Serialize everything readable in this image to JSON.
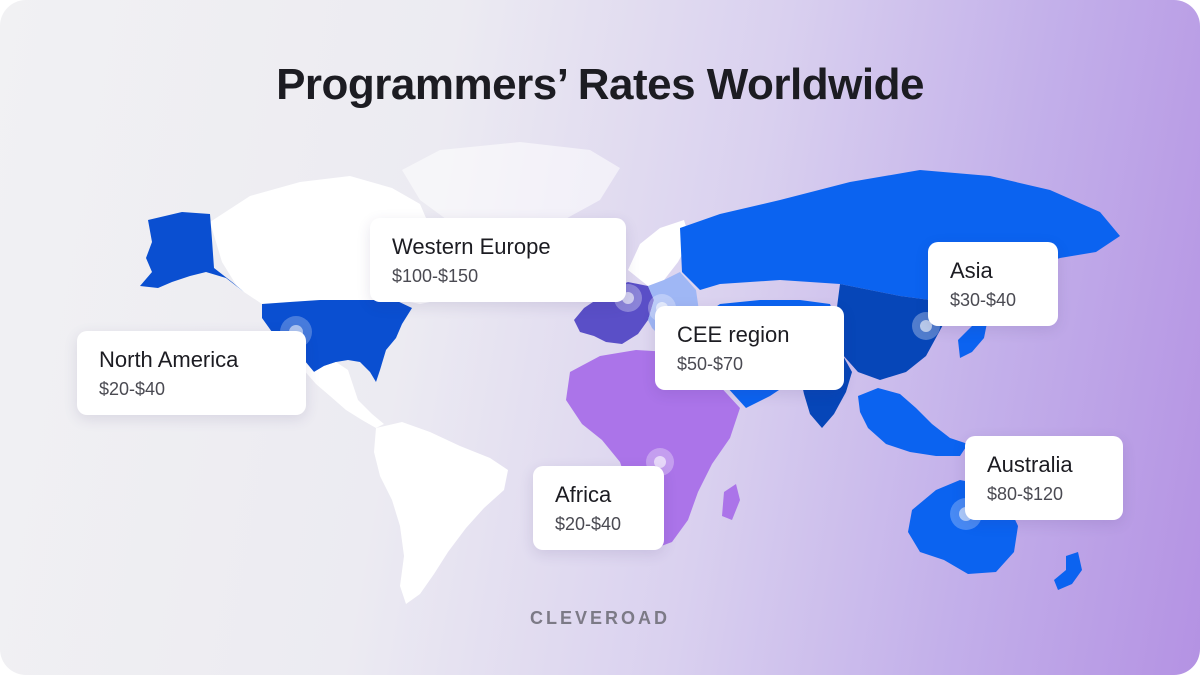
{
  "title": "Programmers’ Rates Worldwide",
  "brand": "CLEVEROAD",
  "colors": {
    "north_america": "#0a4fd1",
    "russia_asia": "#0b63f0",
    "china_india": "#0646b8",
    "western_europe": "#5a4fc7",
    "cee": "#9fb7f5",
    "africa": "#ab74e9",
    "australia": "#0b63f0",
    "uncolored": "#ffffff"
  },
  "regions": [
    {
      "key": "western_europe",
      "name": "Western Europe",
      "rate": "$100-$150"
    },
    {
      "key": "north_america",
      "name": "North America",
      "rate": "$20-$40"
    },
    {
      "key": "cee",
      "name": "CEE region",
      "rate": "$50-$70"
    },
    {
      "key": "asia",
      "name": "Asia",
      "rate": "$30-$40"
    },
    {
      "key": "africa",
      "name": "Africa",
      "rate": "$20-$40"
    },
    {
      "key": "australia",
      "name": "Australia",
      "rate": "$80-$120"
    }
  ]
}
